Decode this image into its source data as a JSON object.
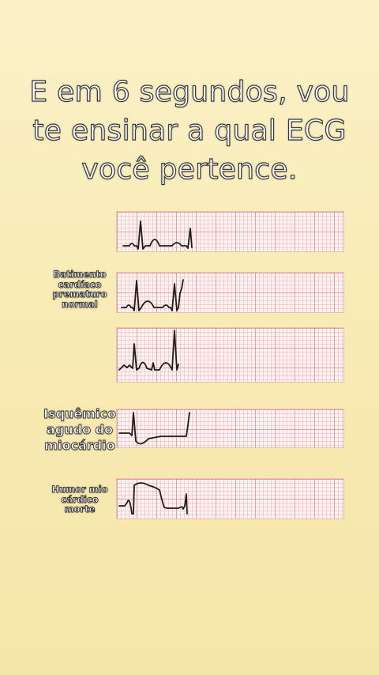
{
  "headline": {
    "lines": [
      "E em 6 segundos, vou",
      "te ensinar a qual ECG",
      "você pertence."
    ]
  },
  "ecg": {
    "trace_color": "#1d1d1d",
    "grid_color": "#d6788c",
    "strips": [
      {
        "label_lines": []
      },
      {
        "label_lines": [
          "Batimento",
          "cardíaco",
          "prematuro",
          "normal"
        ]
      },
      {
        "label_lines": []
      },
      {
        "label_lines": [
          "Isquêmico",
          "agudo do",
          "miocárdio"
        ]
      },
      {
        "label_lines": [
          "Humor mio",
          "cárdico",
          "morte"
        ]
      }
    ]
  }
}
